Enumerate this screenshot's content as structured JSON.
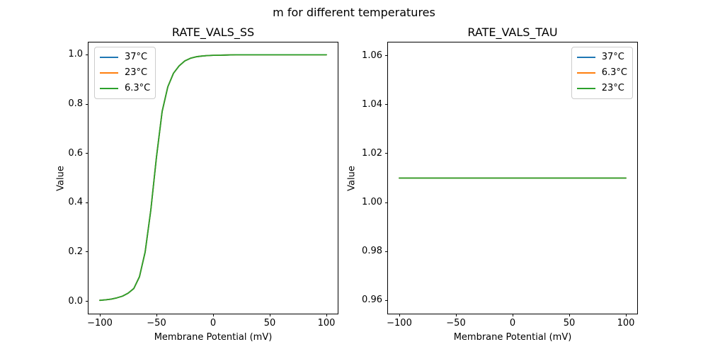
{
  "figure": {
    "suptitle": "m for different temperatures",
    "background": "#ffffff"
  },
  "colors": {
    "blue": "#1f77b4",
    "orange": "#ff7f0e",
    "green": "#2ca02c"
  },
  "chart_data": [
    {
      "type": "line",
      "title": "RATE_VALS_SS",
      "xlabel": "Membrane Potential (mV)",
      "ylabel": "Value",
      "xlim": [
        -110,
        110
      ],
      "ylim": [
        -0.05,
        1.05
      ],
      "grid": false,
      "xticks": [
        {
          "v": -100,
          "label": "−100"
        },
        {
          "v": -50,
          "label": "−50"
        },
        {
          "v": 0,
          "label": "0"
        },
        {
          "v": 50,
          "label": "50"
        },
        {
          "v": 100,
          "label": "100"
        }
      ],
      "yticks": [
        {
          "v": 0.0,
          "label": "0.0"
        },
        {
          "v": 0.2,
          "label": "0.2"
        },
        {
          "v": 0.4,
          "label": "0.4"
        },
        {
          "v": 0.6,
          "label": "0.6"
        },
        {
          "v": 0.8,
          "label": "0.8"
        },
        {
          "v": 1.0,
          "label": "1.0"
        }
      ],
      "legend": {
        "position": "upper-left",
        "entries": [
          {
            "label": "37°C",
            "color": "#1f77b4"
          },
          {
            "label": "23°C",
            "color": "#ff7f0e"
          },
          {
            "label": "6.3°C",
            "color": "#2ca02c"
          }
        ]
      },
      "x": [
        -100,
        -95,
        -90,
        -85,
        -80,
        -75,
        -70,
        -65,
        -60,
        -55,
        -50,
        -45,
        -40,
        -35,
        -30,
        -25,
        -20,
        -15,
        -10,
        -5,
        0,
        10,
        20,
        30,
        40,
        50,
        60,
        70,
        80,
        90,
        100
      ],
      "series": [
        {
          "name": "37°C",
          "color": "#1f77b4",
          "values": [
            0.004,
            0.006,
            0.009,
            0.014,
            0.021,
            0.033,
            0.052,
            0.1,
            0.2,
            0.37,
            0.585,
            0.77,
            0.87,
            0.925,
            0.955,
            0.975,
            0.986,
            0.992,
            0.995,
            0.997,
            0.998,
            0.999,
            1.0,
            1.0,
            1.0,
            1.0,
            1.0,
            1.0,
            1.0,
            1.0,
            1.0
          ]
        },
        {
          "name": "23°C",
          "color": "#ff7f0e",
          "values": [
            0.004,
            0.006,
            0.009,
            0.014,
            0.021,
            0.033,
            0.052,
            0.1,
            0.2,
            0.37,
            0.585,
            0.77,
            0.87,
            0.925,
            0.955,
            0.975,
            0.986,
            0.992,
            0.995,
            0.997,
            0.998,
            0.999,
            1.0,
            1.0,
            1.0,
            1.0,
            1.0,
            1.0,
            1.0,
            1.0,
            1.0
          ]
        },
        {
          "name": "6.3°C",
          "color": "#2ca02c",
          "values": [
            0.004,
            0.006,
            0.009,
            0.014,
            0.021,
            0.033,
            0.052,
            0.1,
            0.2,
            0.37,
            0.585,
            0.77,
            0.87,
            0.925,
            0.955,
            0.975,
            0.986,
            0.992,
            0.995,
            0.997,
            0.998,
            0.999,
            1.0,
            1.0,
            1.0,
            1.0,
            1.0,
            1.0,
            1.0,
            1.0,
            1.0
          ]
        }
      ]
    },
    {
      "type": "line",
      "title": "RATE_VALS_TAU",
      "xlabel": "Membrane Potential (mV)",
      "ylabel": "Value",
      "xlim": [
        -110,
        110
      ],
      "ylim": [
        0.9545,
        1.0655
      ],
      "grid": false,
      "xticks": [
        {
          "v": -100,
          "label": "−100"
        },
        {
          "v": -50,
          "label": "−50"
        },
        {
          "v": 0,
          "label": "0"
        },
        {
          "v": 50,
          "label": "50"
        },
        {
          "v": 100,
          "label": "100"
        }
      ],
      "yticks": [
        {
          "v": 0.96,
          "label": "0.96"
        },
        {
          "v": 0.98,
          "label": "0.98"
        },
        {
          "v": 1.0,
          "label": "1.00"
        },
        {
          "v": 1.02,
          "label": "1.02"
        },
        {
          "v": 1.04,
          "label": "1.04"
        },
        {
          "v": 1.06,
          "label": "1.06"
        }
      ],
      "legend": {
        "position": "upper-right",
        "entries": [
          {
            "label": "37°C",
            "color": "#1f77b4"
          },
          {
            "label": "6.3°C",
            "color": "#ff7f0e"
          },
          {
            "label": "23°C",
            "color": "#2ca02c"
          }
        ]
      },
      "x": [
        -100,
        100
      ],
      "series": [
        {
          "name": "37°C",
          "color": "#1f77b4",
          "values": [
            1.01,
            1.01
          ]
        },
        {
          "name": "6.3°C",
          "color": "#ff7f0e",
          "values": [
            1.01,
            1.01
          ]
        },
        {
          "name": "23°C",
          "color": "#2ca02c",
          "values": [
            1.01,
            1.01
          ]
        }
      ]
    }
  ]
}
